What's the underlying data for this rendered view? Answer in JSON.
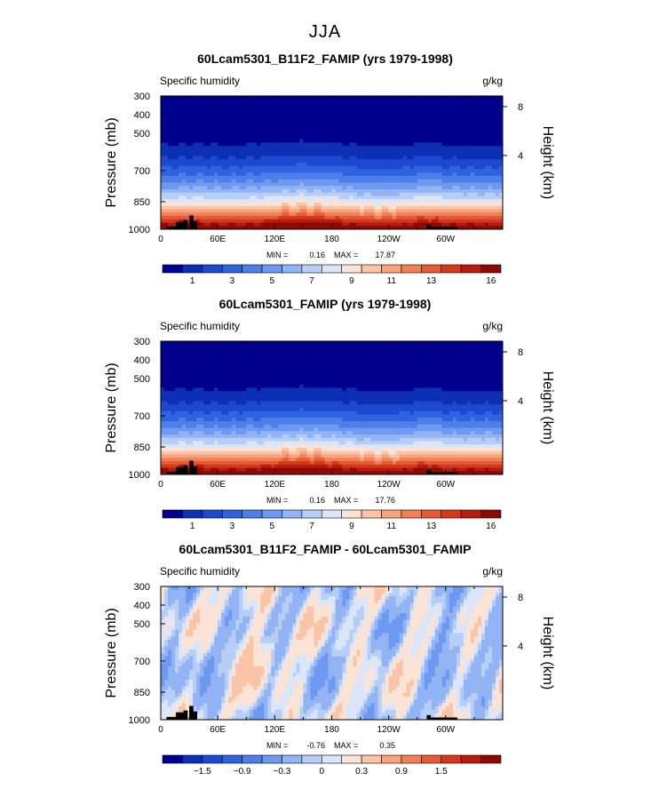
{
  "page_title": "JJA",
  "chart_data": [
    {
      "type": "heatmap",
      "title": "60Lcam5301_B11F2_FAMIP (yrs 1979-1998)",
      "subtitle_left": "Specific humidity",
      "subtitle_right": "g/kg",
      "ylabel": "Pressure (mb)",
      "ylabel_right": "Height (km)",
      "x_ticks": [
        "0",
        "60E",
        "120E",
        "180",
        "120W",
        "60W"
      ],
      "y_ticks": [
        "300",
        "400",
        "500",
        "700",
        "850",
        "1000"
      ],
      "y_right_ticks": [
        "8",
        "4"
      ],
      "min_label": "MIN =",
      "min_value": "0.16",
      "max_label": "MAX =",
      "max_value": "17.87",
      "colorbar_labels": [
        "1",
        "3",
        "5",
        "7",
        "9",
        "11",
        "13",
        "16"
      ],
      "colors": [
        "#00008c",
        "#0c2fb4",
        "#1b49cf",
        "#2f63e0",
        "#4d7eea",
        "#6e99f0",
        "#92b3f4",
        "#b7cef7",
        "#dbe6fa",
        "#fbe4d6",
        "#fac4a8",
        "#f7a37e",
        "#f18058",
        "#e85a33",
        "#d4391c",
        "#b61c0f",
        "#8b0a05"
      ],
      "ylim": [
        1000,
        300
      ]
    },
    {
      "type": "heatmap",
      "title": "60Lcam5301_FAMIP (yrs 1979-1998)",
      "subtitle_left": "Specific humidity",
      "subtitle_right": "g/kg",
      "ylabel": "Pressure (mb)",
      "ylabel_right": "Height (km)",
      "x_ticks": [
        "0",
        "60E",
        "120E",
        "180",
        "120W",
        "60W"
      ],
      "y_ticks": [
        "300",
        "400",
        "500",
        "700",
        "850",
        "1000"
      ],
      "y_right_ticks": [
        "8",
        "4"
      ],
      "min_label": "MIN =",
      "min_value": "0.16",
      "max_label": "MAX =",
      "max_value": "17.76",
      "colorbar_labels": [
        "1",
        "3",
        "5",
        "7",
        "9",
        "11",
        "13",
        "16"
      ],
      "colors": [
        "#00008c",
        "#0c2fb4",
        "#1b49cf",
        "#2f63e0",
        "#4d7eea",
        "#6e99f0",
        "#92b3f4",
        "#b7cef7",
        "#dbe6fa",
        "#fbe4d6",
        "#fac4a8",
        "#f7a37e",
        "#f18058",
        "#e85a33",
        "#d4391c",
        "#b61c0f",
        "#8b0a05"
      ],
      "ylim": [
        1000,
        300
      ]
    },
    {
      "type": "heatmap",
      "title": "60Lcam5301_B11F2_FAMIP - 60Lcam5301_FAMIP",
      "subtitle_left": "Specific humidity",
      "subtitle_right": "g/kg",
      "ylabel": "Pressure (mb)",
      "ylabel_right": "Height (km)",
      "x_ticks": [
        "0",
        "60E",
        "120E",
        "180",
        "120W",
        "60W"
      ],
      "y_ticks": [
        "300",
        "400",
        "500",
        "700",
        "850",
        "1000"
      ],
      "y_right_ticks": [
        "8",
        "4"
      ],
      "min_label": "MIN =",
      "min_value": "-0.76",
      "max_label": "MAX =",
      "max_value": "0.35",
      "colorbar_labels": [
        "−1.5",
        "−0.9",
        "−0.3",
        "0",
        "0.3",
        "0.9",
        "1.5"
      ],
      "colors": [
        "#00008c",
        "#0c2fb4",
        "#1b49cf",
        "#2f63e0",
        "#4d7eea",
        "#6e99f0",
        "#92b3f4",
        "#b7cef7",
        "#dbe6fa",
        "#fbe4d6",
        "#fac4a8",
        "#f7a37e",
        "#f18058",
        "#e85a33",
        "#d4391c",
        "#b61c0f",
        "#8b0a05"
      ],
      "ylim": [
        1000,
        300
      ]
    }
  ]
}
